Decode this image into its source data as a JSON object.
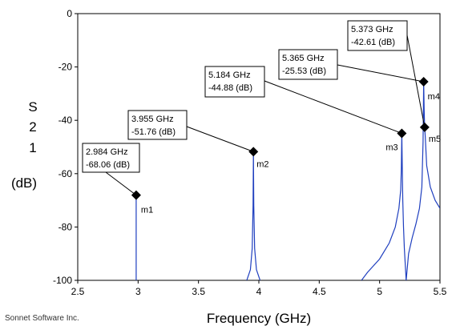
{
  "chart_data": {
    "type": "line",
    "xlabel": "Frequency (GHz)",
    "ylabel_lines": [
      "S",
      "2",
      "1",
      "(dB)"
    ],
    "credit": "Sonnet Software Inc.",
    "xlim": [
      2.5,
      5.5
    ],
    "ylim": [
      -100,
      0
    ],
    "x_ticks": [
      "2.5",
      "3",
      "3.5",
      "4",
      "4.5",
      "5",
      "5.5"
    ],
    "y_ticks": [
      "0",
      "-20",
      "-40",
      "-60",
      "-80",
      "-100"
    ],
    "grid": false,
    "series_color": "#1f3fbf",
    "series": [
      {
        "x": [
          2.984,
          2.984,
          2.984,
          2.984
        ],
        "y": [
          -100,
          -90,
          -68.06,
          -100
        ]
      },
      {
        "x": [
          3.9,
          3.93,
          3.945,
          3.952,
          3.955,
          3.958,
          3.965,
          3.98,
          4.01
        ],
        "y": [
          -100,
          -96,
          -88,
          -72,
          -51.76,
          -72,
          -88,
          -96,
          -100
        ]
      },
      {
        "x": [
          4.85,
          4.9,
          5.0,
          5.08,
          5.13,
          5.16,
          5.175,
          5.18,
          5.184,
          5.188,
          5.192,
          5.198,
          5.205,
          5.215,
          5.22
        ],
        "y": [
          -100,
          -97,
          -92,
          -86,
          -80,
          -73,
          -66,
          -58,
          -44.88,
          -58,
          -70,
          -80,
          -88,
          -96,
          -100
        ]
      },
      {
        "x": [
          5.22,
          5.24,
          5.27,
          5.3,
          5.33,
          5.35,
          5.36,
          5.365,
          5.369,
          5.373,
          5.378,
          5.39,
          5.42,
          5.46,
          5.5
        ],
        "y": [
          -100,
          -90,
          -84,
          -79,
          -73,
          -65,
          -48,
          -25.53,
          -36,
          -42.61,
          -46,
          -57,
          -65,
          -70,
          -73
        ]
      }
    ],
    "markers": [
      {
        "name": "m1",
        "x": 2.984,
        "y": -68.06,
        "label_freq": "2.984 GHz",
        "label_val": "-68.06  (dB)"
      },
      {
        "name": "m2",
        "x": 3.955,
        "y": -51.76,
        "label_freq": "3.955 GHz",
        "label_val": "-51.76  (dB)"
      },
      {
        "name": "m3",
        "x": 5.184,
        "y": -44.88,
        "label_freq": "5.184 GHz",
        "label_val": "-44.88  (dB)"
      },
      {
        "name": "m4",
        "x": 5.365,
        "y": -25.53,
        "label_freq": "5.365 GHz",
        "label_val": "-25.53  (dB)"
      },
      {
        "name": "m5",
        "x": 5.373,
        "y": -42.61,
        "label_freq": "5.373 GHz",
        "label_val": "-42.61  (dB)"
      }
    ]
  }
}
